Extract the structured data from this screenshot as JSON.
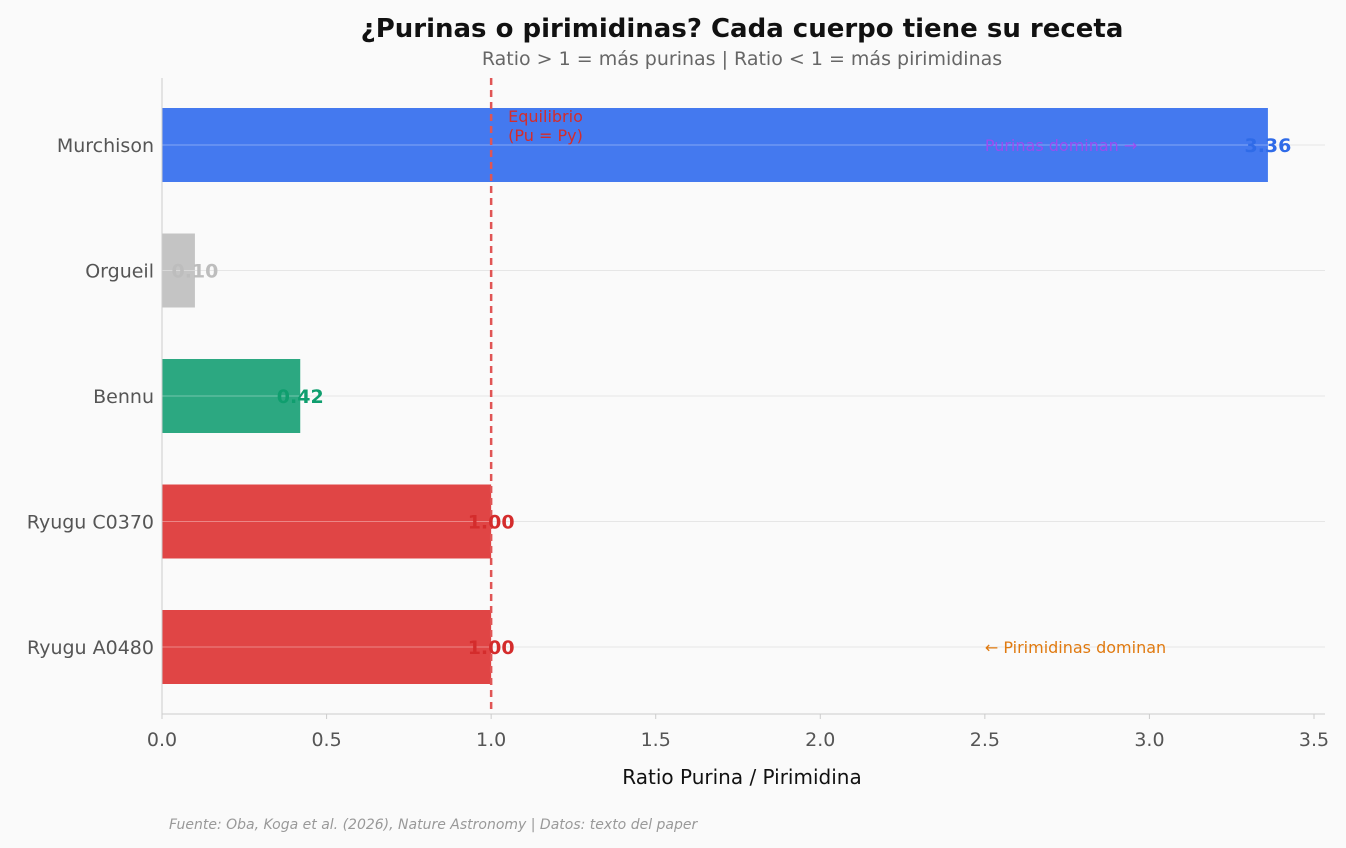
{
  "chart_data": {
    "type": "bar",
    "orientation": "horizontal",
    "title": "¿Purinas o pirimidinas? Cada cuerpo tiene su receta",
    "subtitle": "Ratio > 1 = más purinas | Ratio < 1 = más pirimidinas",
    "xlabel": "Ratio Purina / Pirimidina",
    "ylabel": "",
    "xlim": [
      0,
      3.5
    ],
    "xticks": [
      0.0,
      0.5,
      1.0,
      1.5,
      2.0,
      2.5,
      3.0,
      3.5
    ],
    "xtick_labels": [
      "0.0",
      "0.5",
      "1.0",
      "1.5",
      "2.0",
      "2.5",
      "3.0",
      "3.5"
    ],
    "categories": [
      "Murchison",
      "Orgueil",
      "Bennu",
      "Ryugu C0370",
      "Ryugu A0480"
    ],
    "values": [
      3.36,
      0.1,
      0.42,
      1.0,
      1.0
    ],
    "value_labels": [
      "3.36",
      "0.10",
      "0.42",
      "1.00",
      "1.00"
    ],
    "bar_colors": [
      "#4479ef",
      "#c4c4c4",
      "#2ca881",
      "#e04545",
      "#e04545"
    ],
    "label_colors": [
      "#2f6be8",
      "#bdbdbd",
      "#0f9e6e",
      "#d42c2c",
      "#d42c2c"
    ],
    "reference_line": {
      "x": 1.0,
      "color": "#e05555",
      "label_lines": [
        "Equilibrio",
        "(Pu = Py)"
      ],
      "label_color": "#d42c2c"
    },
    "annotations": [
      {
        "text": "Purinas dominan →",
        "x": 2.5,
        "category": "Murchison",
        "color": "#9b4cf0"
      },
      {
        "text": "← Pirimidinas dominan",
        "x": 2.5,
        "category": "Ryugu A0480",
        "color": "#e07a10"
      }
    ],
    "grid": "horizontal"
  },
  "footer": {
    "source": "Fuente: Oba, Koga et al. (2026), Nature Astronomy | Datos: texto del paper"
  }
}
